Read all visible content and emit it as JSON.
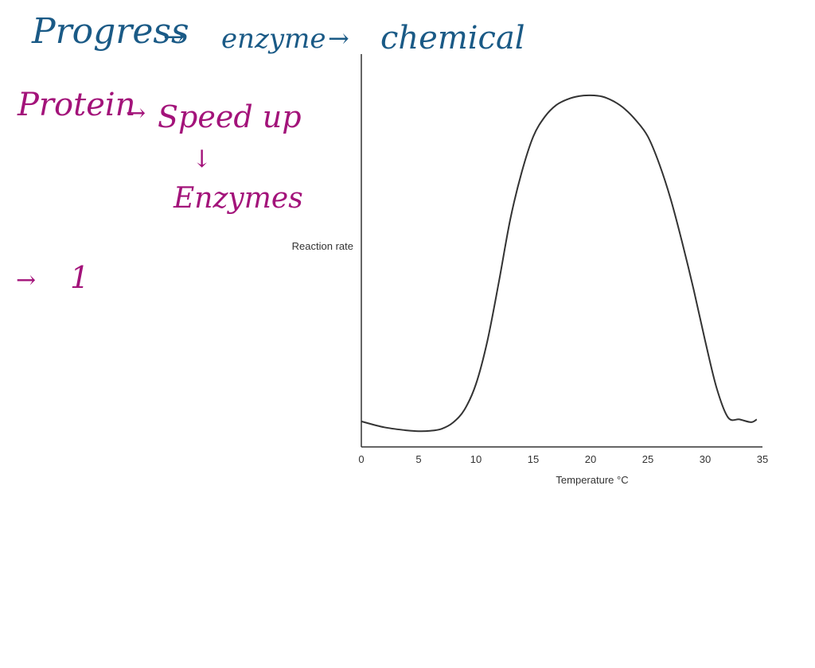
{
  "notes": {
    "line1": {
      "progress": "Progress",
      "arrow1": "→",
      "enzyme": "enzyme",
      "arrow2": "→",
      "chemical": "chemical"
    },
    "line2": {
      "protein": "Protein",
      "arrow": "→",
      "speed_up": "Speed up",
      "down_arrow": "↓",
      "enzymes": "Enzymes"
    },
    "line3": {
      "arrow": "→",
      "one": "1"
    },
    "colors": {
      "blue_ink": "#1a5a86",
      "magenta_ink": "#a3137a"
    }
  },
  "chart_data": {
    "type": "line",
    "title": "",
    "xlabel": "Temperature °C",
    "ylabel": "Reaction rate",
    "xlim": [
      0,
      35
    ],
    "ylim": [
      0,
      100
    ],
    "x_ticks": [
      "0",
      "5",
      "10",
      "15",
      "20",
      "25",
      "30",
      "35"
    ],
    "y_ticks": [],
    "grid": false,
    "line_color": "#333333",
    "series": [
      {
        "x": [
          0,
          2,
          4,
          5,
          6,
          7,
          8,
          9,
          10,
          11,
          12,
          13,
          14,
          15,
          16,
          17,
          18,
          19,
          20,
          21,
          22,
          23,
          24,
          25,
          26,
          27,
          28,
          29,
          30,
          31,
          32,
          33,
          34,
          34.5
        ],
        "y": [
          6.5,
          5,
          4.2,
          4,
          4.1,
          4.6,
          6.2,
          9.5,
          16,
          27,
          42,
          58,
          70,
          79,
          84,
          87,
          88.5,
          89.3,
          89.5,
          89.2,
          88,
          86,
          83,
          79,
          72,
          63,
          52,
          40,
          27,
          15,
          7.5,
          7,
          6.3,
          7
        ]
      }
    ]
  }
}
